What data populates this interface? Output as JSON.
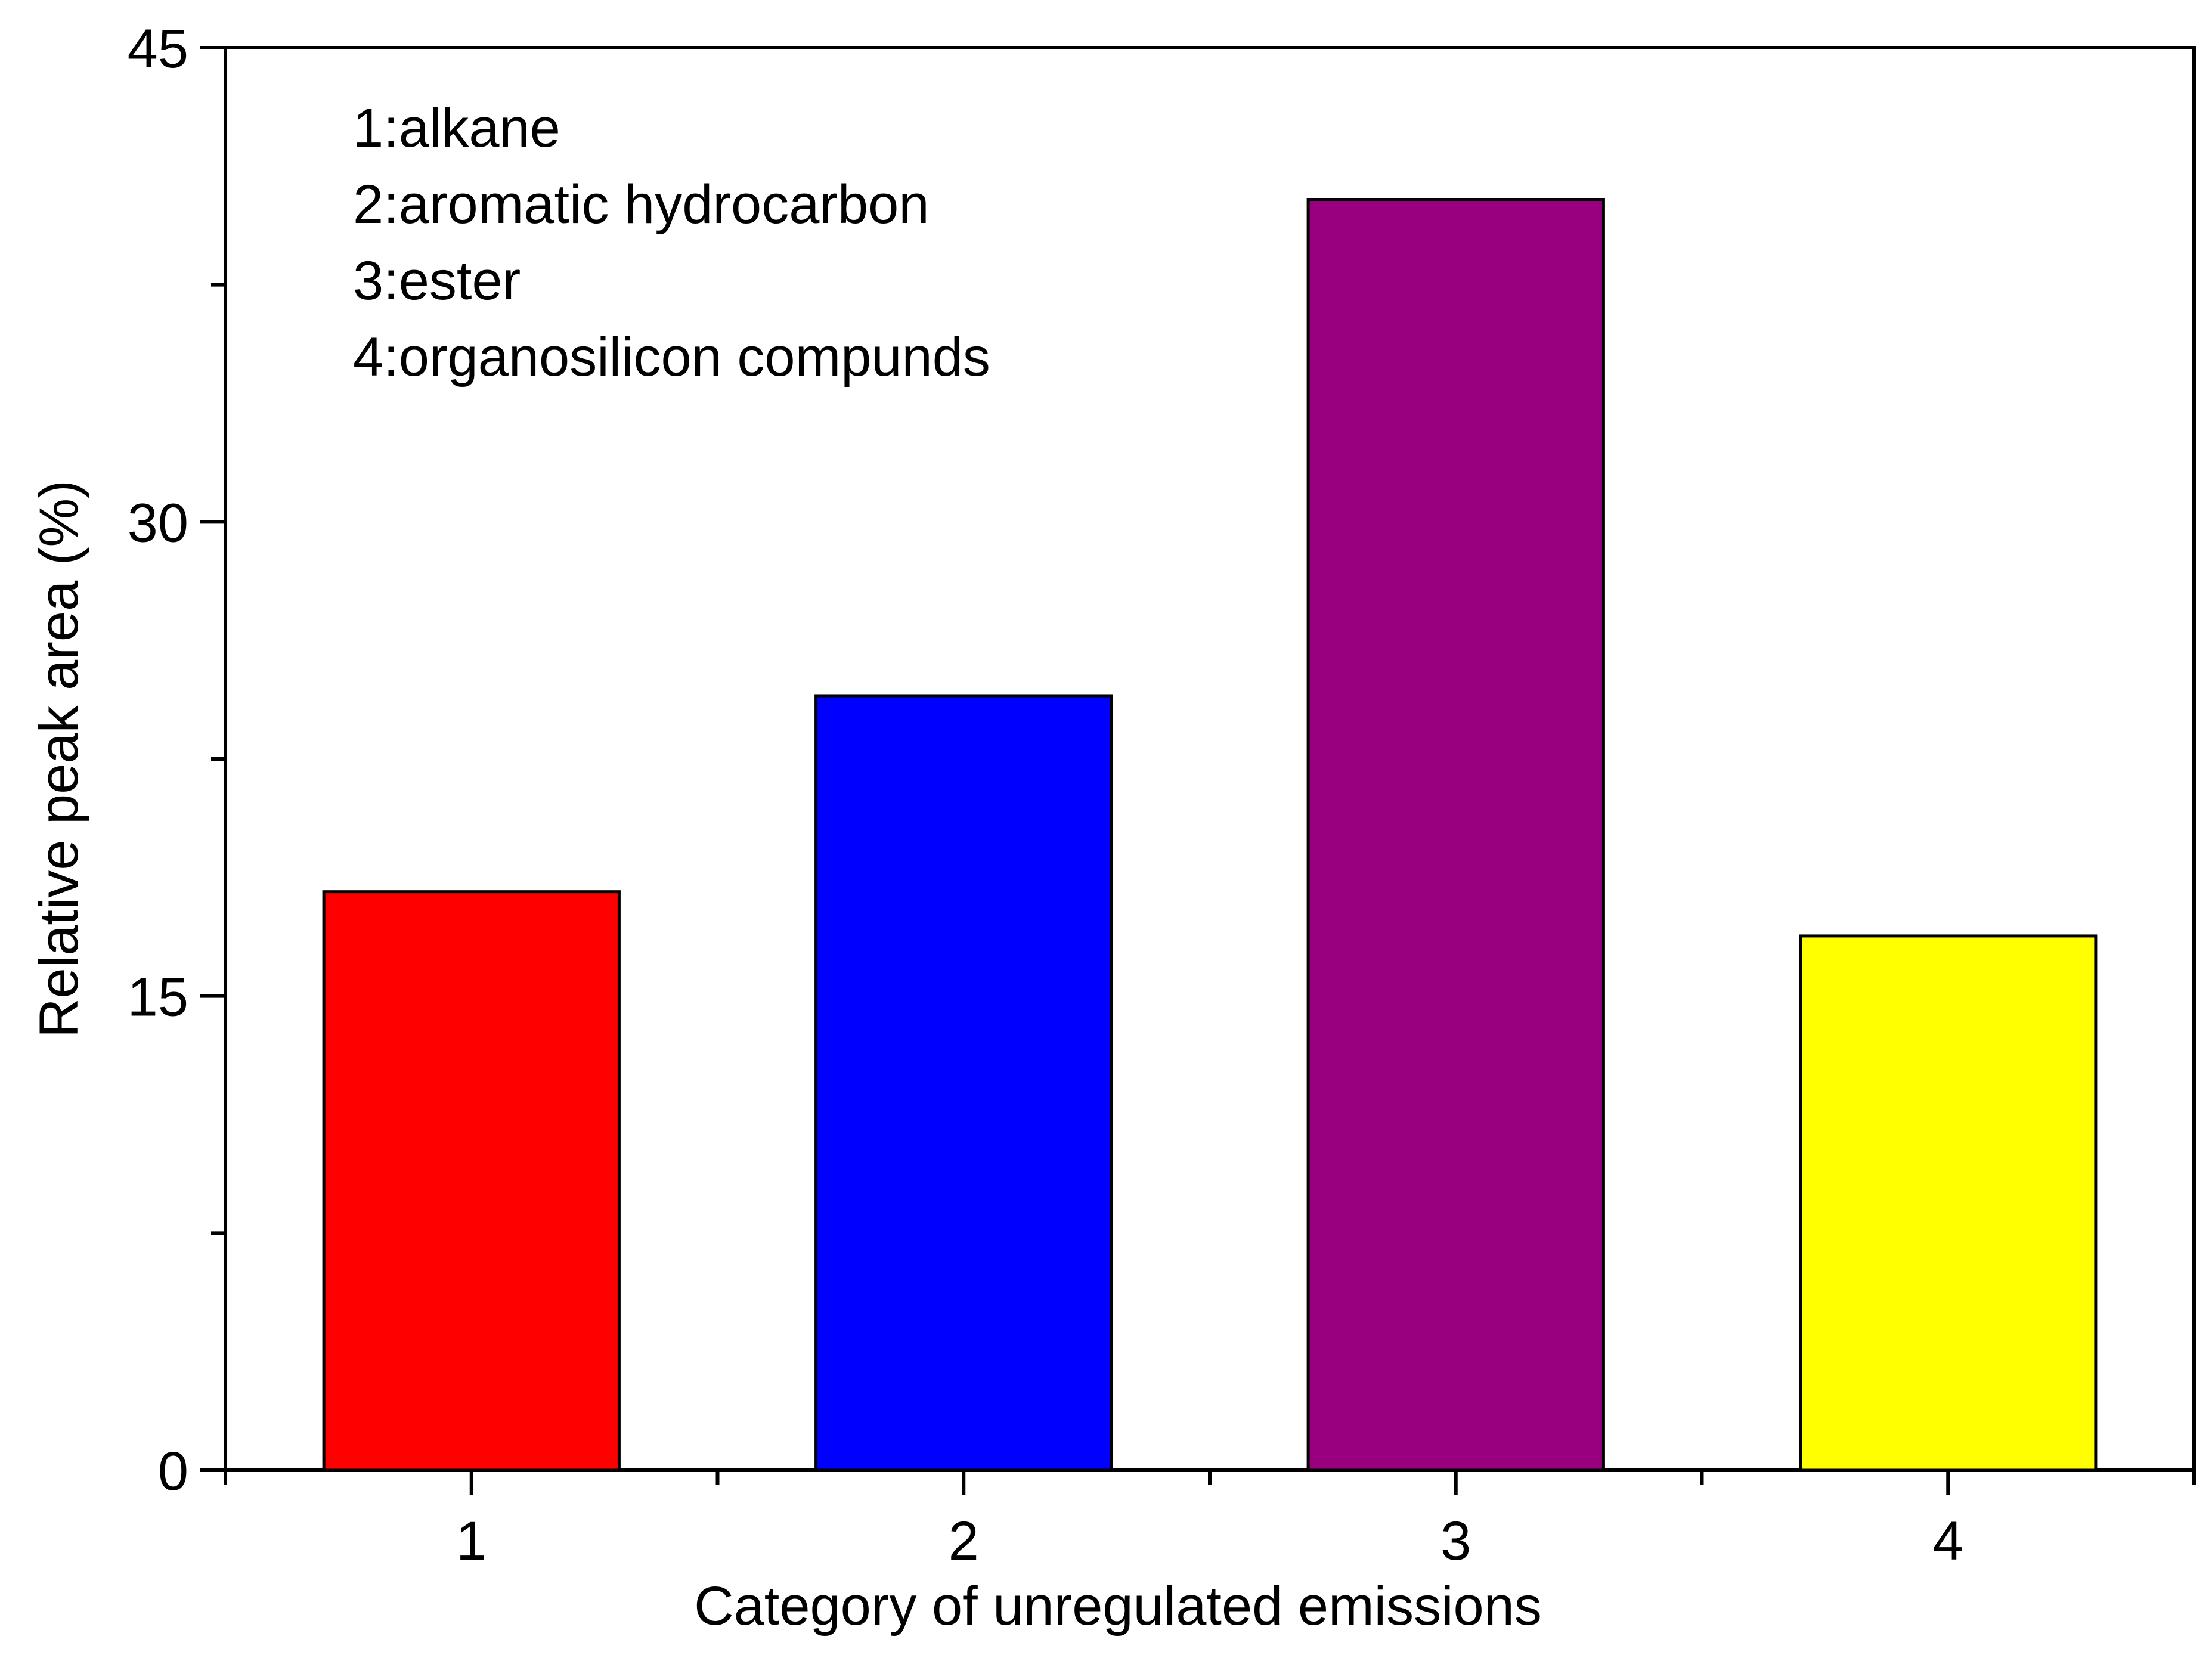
{
  "chart_data": {
    "type": "bar",
    "categories": [
      "1",
      "2",
      "3",
      "4"
    ],
    "values": [
      18.3,
      24.5,
      40.2,
      16.9
    ],
    "colors": [
      "#ff0000",
      "#0000ff",
      "#990080",
      "#ffff00"
    ],
    "xlabel": "Category of unregulated emissions",
    "ylabel": "Relative peak area (%)",
    "ylim": [
      0,
      45
    ],
    "yticks": [
      0,
      15,
      30,
      45
    ],
    "y_minor_ticks": [
      7.5,
      22.5,
      37.5
    ],
    "xlim": [
      0.5,
      4.5
    ],
    "grid": false,
    "legend_position": "top-left",
    "annotations": [
      "1:alkane",
      "2:aromatic hydrocarbon",
      "3:ester",
      "4:organosilicon compunds"
    ]
  }
}
